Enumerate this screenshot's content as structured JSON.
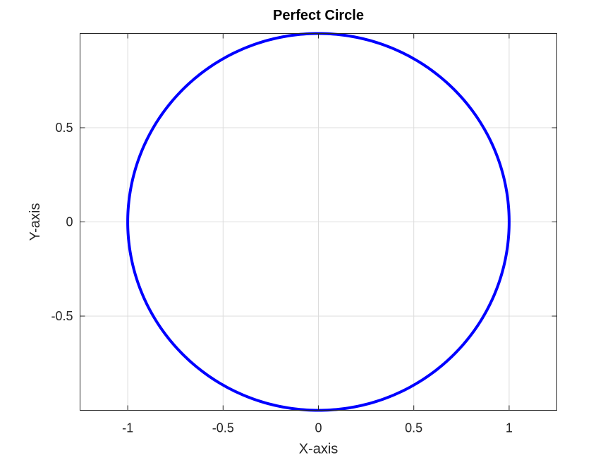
{
  "chart_data": {
    "type": "line",
    "title": "Perfect Circle",
    "xlabel": "X-axis",
    "ylabel": "Y-axis",
    "xlim": [
      -1.25,
      1.25
    ],
    "ylim": [
      -1,
      1
    ],
    "xticks": [
      -1,
      -0.5,
      0,
      0.5,
      1
    ],
    "xtick_labels": [
      "-1",
      "-0.5",
      "0",
      "0.5",
      "1"
    ],
    "yticks": [
      -0.5,
      0,
      0.5
    ],
    "ytick_labels": [
      "-0.5",
      "0",
      "0.5"
    ],
    "grid": true,
    "series": [
      {
        "shape": "circle",
        "center": [
          0,
          0
        ],
        "radius": 1,
        "color": "#0000ff"
      }
    ]
  }
}
